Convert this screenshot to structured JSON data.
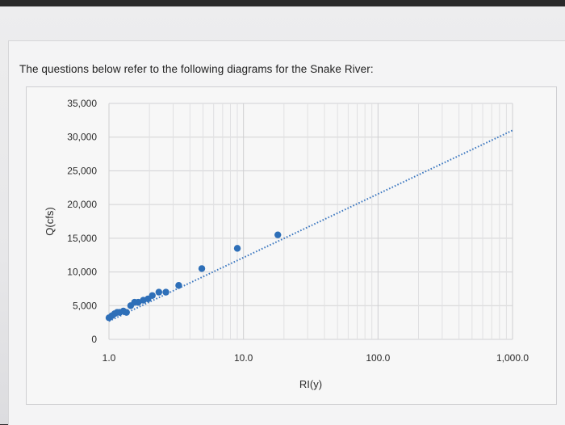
{
  "question": "The questions below refer to the following diagrams for the Snake River:",
  "chart_data": {
    "type": "scatter",
    "x_scale": "log",
    "xlim": [
      1.0,
      1000.0
    ],
    "ylim": [
      0,
      35000
    ],
    "xlabel": "RI(y)",
    "ylabel": "Q(cfs)",
    "x_ticks": [
      1.0,
      10.0,
      100.0,
      1000.0
    ],
    "x_tick_labels": [
      "1.0",
      "10.0",
      "100.0",
      "1,000.0"
    ],
    "y_ticks": [
      0,
      5000,
      10000,
      15000,
      20000,
      25000,
      30000,
      35000
    ],
    "y_tick_labels": [
      "0",
      "5,000",
      "10,000",
      "15,000",
      "20,000",
      "25,000",
      "30,000",
      "35,000"
    ],
    "grid": true,
    "marker_color": "#2e6fb8",
    "trendline_color": "#3d78c0",
    "points": [
      {
        "x": 1.0,
        "y": 3200
      },
      {
        "x": 1.05,
        "y": 3500
      },
      {
        "x": 1.1,
        "y": 3800
      },
      {
        "x": 1.15,
        "y": 4000
      },
      {
        "x": 1.2,
        "y": 4000
      },
      {
        "x": 1.28,
        "y": 4200
      },
      {
        "x": 1.35,
        "y": 4000
      },
      {
        "x": 1.45,
        "y": 5000
      },
      {
        "x": 1.55,
        "y": 5500
      },
      {
        "x": 1.65,
        "y": 5500
      },
      {
        "x": 1.8,
        "y": 5800
      },
      {
        "x": 1.95,
        "y": 6000
      },
      {
        "x": 2.1,
        "y": 6500
      },
      {
        "x": 2.35,
        "y": 7000
      },
      {
        "x": 2.65,
        "y": 7000
      },
      {
        "x": 3.3,
        "y": 8000
      },
      {
        "x": 4.9,
        "y": 10500
      },
      {
        "x": 9.0,
        "y": 13500
      },
      {
        "x": 18.0,
        "y": 15500
      }
    ],
    "trendline": [
      {
        "x": 1.0,
        "y": 2700
      },
      {
        "x": 1000.0,
        "y": 31000
      }
    ]
  }
}
